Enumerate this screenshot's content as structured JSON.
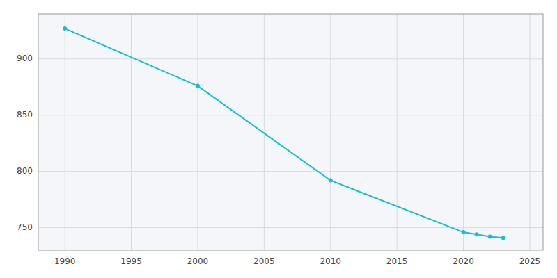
{
  "chart_data": {
    "type": "line",
    "x": [
      1990,
      2000,
      2010,
      2020,
      2021,
      2022,
      2023
    ],
    "values": [
      927,
      876,
      792,
      746,
      744,
      742,
      741
    ],
    "color": "#17BECF",
    "marker": "circle",
    "xlim": [
      1988,
      2026
    ],
    "ylim": [
      730,
      940
    ],
    "xticks": [
      1990,
      1995,
      2000,
      2005,
      2010,
      2015,
      2020,
      2025
    ],
    "yticks": [
      750,
      800,
      850,
      900
    ],
    "grid": true
  }
}
